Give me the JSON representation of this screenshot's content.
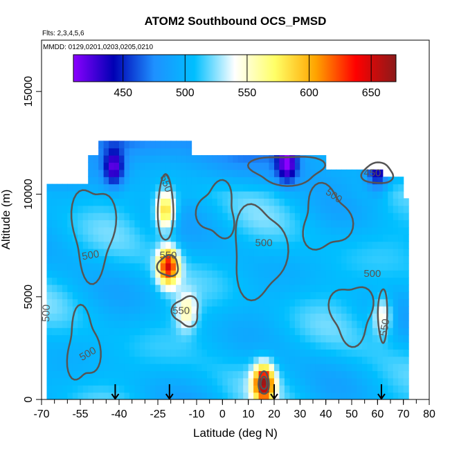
{
  "chart_data": {
    "type": "heatmap",
    "title": "ATOM2 Southbound OCS_PMSD",
    "flights_note": "Flts: 2,3,4,5,6",
    "dates_note": "MMDD: 0129,0201,0203,0205,0210",
    "xlabel": "Latitude (deg N)",
    "ylabel": "Altitude (m)",
    "xlim": [
      -70,
      80
    ],
    "ylim": [
      0,
      17500
    ],
    "x_ticks": [
      -70,
      -55,
      -40,
      -25,
      -10,
      0,
      10,
      20,
      30,
      40,
      50,
      60,
      70,
      80
    ],
    "x_tick_labels": [
      "-70",
      "-55",
      "-40",
      "-25",
      "-10",
      "0",
      "10",
      "20",
      "30",
      "40",
      "50",
      "60",
      "70",
      "80"
    ],
    "x_minor_step": 5,
    "y_ticks": [
      0,
      5000,
      10000,
      15000
    ],
    "y_tick_labels": [
      "0",
      "5000",
      "10000",
      "15000"
    ],
    "colorbar": {
      "min": 410,
      "max": 670,
      "ticks": [
        450,
        500,
        550,
        600,
        650
      ],
      "tick_labels": [
        "450",
        "500",
        "550",
        "600",
        "650"
      ],
      "colors": [
        "#8b00ff",
        "#0000b4",
        "#1e90ff",
        "#00bfff",
        "#ffffff",
        "#ffff66",
        "#ffa500",
        "#ff0000",
        "#8b1a1a"
      ]
    },
    "contour_levels": [
      450,
      500,
      550
    ],
    "contour_labels": [
      {
        "text": "550",
        "lat": -22,
        "alt": 10500,
        "angle": 70
      },
      {
        "text": "550",
        "lat": -21,
        "alt": 7000,
        "angle": 0
      },
      {
        "text": "550",
        "lat": -16,
        "alt": 4300,
        "angle": 0
      },
      {
        "text": "550",
        "lat": 63,
        "alt": 3500,
        "angle": -80
      },
      {
        "text": "500",
        "lat": -51,
        "alt": 7000,
        "angle": -10
      },
      {
        "text": "500",
        "lat": -68,
        "alt": 4200,
        "angle": -88
      },
      {
        "text": "500",
        "lat": -52,
        "alt": 2200,
        "angle": -30
      },
      {
        "text": "500",
        "lat": 16,
        "alt": 7600,
        "angle": 0
      },
      {
        "text": "500",
        "lat": 43,
        "alt": 9900,
        "angle": 35
      },
      {
        "text": "500",
        "lat": 58,
        "alt": 6100,
        "angle": 0
      },
      {
        "text": "450",
        "lat": 58,
        "alt": 11000,
        "angle": 0
      }
    ],
    "flight_marker_latitudes": [
      -41.5,
      -20.5,
      20,
      61.5
    ],
    "hotspots": [
      {
        "lat": -22,
        "alt": 9200,
        "value": 600
      },
      {
        "lat": -21,
        "alt": 6500,
        "value": 640
      },
      {
        "lat": 16,
        "alt": 800,
        "value": 660
      },
      {
        "lat": 62,
        "alt": 4100,
        "value": 560
      },
      {
        "lat": -14,
        "alt": 4300,
        "value": 555
      },
      {
        "lat": 25,
        "alt": 11500,
        "value": 430
      },
      {
        "lat": -42,
        "alt": 11300,
        "value": 435
      },
      {
        "lat": 60,
        "alt": 11100,
        "value": 440
      }
    ]
  }
}
